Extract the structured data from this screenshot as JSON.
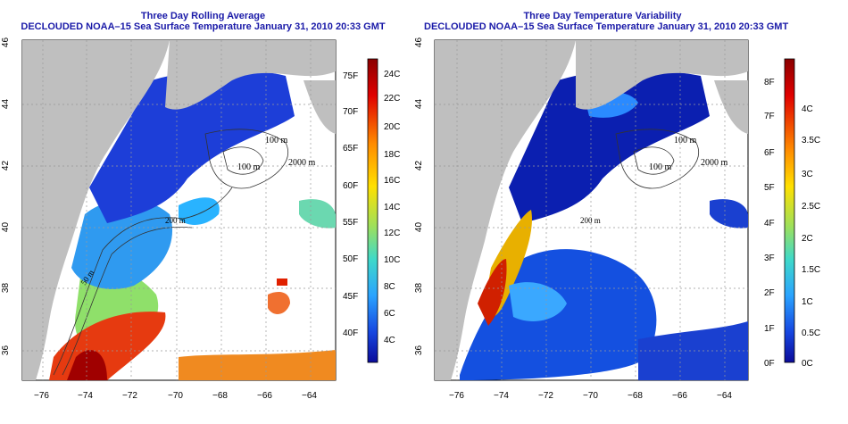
{
  "left_panel": {
    "title_line1": "Three Day Rolling Average",
    "title_line2": "DECLOUDED NOAA–15 Sea Surface Temperature January 31, 2010 20:33 GMT",
    "colorbar": {
      "fahrenheit": [
        "75F",
        "70F",
        "65F",
        "60F",
        "55F",
        "50F",
        "45F",
        "40F"
      ],
      "celsius": [
        "24C",
        "22C",
        "20C",
        "18C",
        "16C",
        "14C",
        "12C",
        "10C",
        "8C",
        "6C",
        "4C"
      ]
    },
    "contour_labels": [
      "100 m",
      "2000 m",
      "100 m",
      "200 m",
      "50 m",
      "200 m",
      "50 m"
    ]
  },
  "right_panel": {
    "title_line1": "Three Day Temperature Variability",
    "title_line2": "DECLOUDED NOAA–15 Sea Surface Temperature January 31, 2010 20:33 GMT",
    "colorbar": {
      "fahrenheit": [
        "8F",
        "7F",
        "6F",
        "5F",
        "4F",
        "3F",
        "2F",
        "1F",
        "0F"
      ],
      "celsius": [
        "4C",
        "3.5C",
        "3C",
        "2.5C",
        "2C",
        "1.5C",
        "1C",
        "0.5C",
        "0C"
      ]
    },
    "contour_labels": [
      "100 m",
      "2000 m",
      "100 m",
      "200 m"
    ]
  },
  "axes": {
    "lon_ticks": [
      "−76",
      "−74",
      "−72",
      "−70",
      "−68",
      "−66",
      "−64"
    ],
    "lat_ticks": [
      "46",
      "44",
      "42",
      "40",
      "38",
      "36"
    ]
  }
}
